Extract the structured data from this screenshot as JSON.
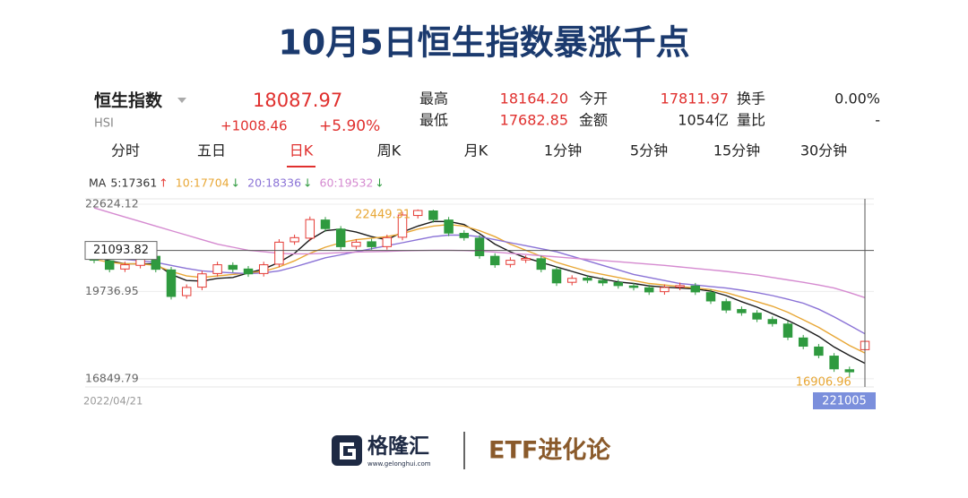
{
  "header": {
    "title": "10月5日恒生指数暴涨千点"
  },
  "quote": {
    "name": "恒生指数",
    "code": "HSI",
    "price": "18087.97",
    "change": "+1008.46",
    "change_pct": "+5.90%",
    "fields": [
      {
        "label": "最高",
        "value": "18164.20",
        "color": "#e0302e"
      },
      {
        "label": "今开",
        "value": "17811.97",
        "color": "#e0302e"
      },
      {
        "label": "换手",
        "value": "0.00%",
        "color": "#222222"
      },
      {
        "label": "最低",
        "value": "17682.85",
        "color": "#e0302e"
      },
      {
        "label": "金额",
        "value": "1054亿",
        "color": "#222222"
      },
      {
        "label": "量比",
        "value": "-",
        "color": "#222222"
      }
    ]
  },
  "tabs": [
    "分时",
    "五日",
    "日K",
    "周K",
    "月K",
    "1分钟",
    "5分钟",
    "15分钟",
    "30分钟"
  ],
  "selected_tab": 2,
  "chart_data": {
    "type": "candlestick",
    "ma_prefix": "MA",
    "up_color": "#e53b35",
    "down_color": "#2f9a3f",
    "open": [
      21000,
      20750,
      20480,
      20600,
      20900,
      20450,
      19600,
      19880,
      20330,
      20600,
      20480,
      20330,
      20640,
      21380,
      21500,
      22100,
      21800,
      21230,
      21380,
      21220,
      21530,
      22250,
      22400,
      22100,
      21660,
      21500,
      20900,
      20630,
      20780,
      20820,
      20460,
      20040,
      20180,
      20100,
      20030,
      19920,
      19860,
      19730,
      19880,
      19920,
      19700,
      19400,
      19140,
      19020,
      18810,
      18660,
      18200,
      17900,
      17600,
      17150,
      17811.97
    ],
    "high": [
      21100,
      20850,
      20720,
      21020,
      21000,
      20550,
      19970,
      20420,
      20720,
      20700,
      20580,
      20720,
      21467,
      21617,
      22215,
      22200,
      21900,
      21467,
      21480,
      21617,
      22365,
      22449.31,
      22440,
      22200,
      21760,
      21600,
      21000,
      20869,
      20929,
      20920,
      20560,
      20271,
      20280,
      20200,
      20130,
      20020,
      19960,
      19971,
      20031,
      20020,
      19800,
      19500,
      19240,
      19120,
      18910,
      18760,
      18300,
      18000,
      17700,
      17250,
      18164.2
    ],
    "low": [
      20670,
      20370,
      20380,
      20500,
      20370,
      19470,
      19500,
      19780,
      20230,
      20370,
      20220,
      20230,
      20540,
      21280,
      21400,
      21716,
      21118,
      21130,
      21118,
      21120,
      21430,
      22150,
      22015,
      21567,
      21417,
      20819,
      20520,
      20530,
      20680,
      20370,
      19921,
      19940,
      20011,
      19921,
      19831,
      19771,
      19622,
      19630,
      19780,
      19622,
      19323,
      19023,
      18934,
      18724,
      18575,
      18126,
      17827,
      17527,
      17078,
      16906.96,
      17682.85
    ],
    "close": [
      20769,
      20470,
      20620,
      20919,
      20470,
      19572,
      19871,
      20320,
      20620,
      20470,
      20320,
      20620,
      21367,
      21517,
      22115,
      21816,
      21218,
      21367,
      21218,
      21517,
      22265,
      22415,
      22115,
      21667,
      21517,
      20919,
      20620,
      20769,
      20829,
      20470,
      20021,
      20171,
      20111,
      20021,
      19931,
      19871,
      19722,
      19871,
      19931,
      19722,
      19423,
      19123,
      19034,
      18824,
      18675,
      18226,
      17927,
      17627,
      17178,
      17079.51,
      18087.97
    ],
    "series": [
      {
        "name": "5:17361",
        "trend": "↑",
        "trend_color": "#e53b35",
        "color": "#1a1a1a",
        "values": [
          20900,
          20750,
          20650,
          20650,
          20650,
          20300,
          20100,
          20080,
          20170,
          20200,
          20350,
          20480,
          20700,
          21000,
          21450,
          21750,
          21800,
          21700,
          21550,
          21450,
          21700,
          21900,
          22050,
          22050,
          21950,
          21650,
          21300,
          21050,
          20850,
          20700,
          20550,
          20400,
          20250,
          20150,
          20050,
          20000,
          19920,
          19880,
          19850,
          19820,
          19750,
          19600,
          19400,
          19220,
          19000,
          18780,
          18530,
          18250,
          17900,
          17620,
          17361
        ]
      },
      {
        "name": "10:17704",
        "trend": "↓",
        "trend_color": "#2f9a3f",
        "color": "#e8a735",
        "values": [
          20800,
          20700,
          20650,
          20650,
          20600,
          20400,
          20250,
          20200,
          20250,
          20300,
          20350,
          20400,
          20550,
          20750,
          21000,
          21200,
          21350,
          21450,
          21500,
          21550,
          21650,
          21800,
          21900,
          21950,
          21900,
          21750,
          21550,
          21300,
          21100,
          20900,
          20700,
          20550,
          20400,
          20300,
          20200,
          20100,
          20000,
          19950,
          19900,
          19850,
          19800,
          19700,
          19550,
          19400,
          19250,
          19050,
          18800,
          18550,
          18250,
          17950,
          17704
        ]
      },
      {
        "name": "20:18336",
        "trend": "↓",
        "trend_color": "#2f9a3f",
        "color": "#8a72d6",
        "values": [
          20900,
          20850,
          20800,
          20750,
          20700,
          20600,
          20500,
          20420,
          20380,
          20350,
          20330,
          20350,
          20420,
          20550,
          20700,
          20850,
          20950,
          21050,
          21150,
          21250,
          21350,
          21450,
          21550,
          21600,
          21600,
          21550,
          21450,
          21350,
          21250,
          21150,
          21050,
          20900,
          20750,
          20600,
          20450,
          20300,
          20200,
          20100,
          20000,
          19950,
          19900,
          19850,
          19780,
          19700,
          19600,
          19480,
          19350,
          19150,
          18900,
          18620,
          18336
        ]
      },
      {
        "name": "60:19532",
        "trend": "↓",
        "trend_color": "#2f9a3f",
        "color": "#d58ad0",
        "values": [
          22500,
          22350,
          22200,
          22050,
          21900,
          21750,
          21600,
          21450,
          21300,
          21200,
          21100,
          21050,
          21000,
          20980,
          20980,
          21000,
          21020,
          21040,
          21050,
          21060,
          21080,
          21090,
          21100,
          21100,
          21090,
          21070,
          21040,
          21000,
          20960,
          20920,
          20880,
          20840,
          20800,
          20760,
          20720,
          20680,
          20640,
          20600,
          20550,
          20500,
          20450,
          20400,
          20340,
          20280,
          20200,
          20120,
          20040,
          19950,
          19850,
          19700,
          19532
        ]
      }
    ],
    "ylim": [
      16580,
      22800
    ],
    "yticks": [
      22624.12,
      19736.95,
      16849.79
    ],
    "grid": true,
    "crosshair_y": 21093.82,
    "x_start": "2022/04/21",
    "x_cursor": "221005"
  },
  "footer": {
    "brand": "格隆汇",
    "url": "www.gelonghui.com",
    "channel": "ETF进化论"
  }
}
